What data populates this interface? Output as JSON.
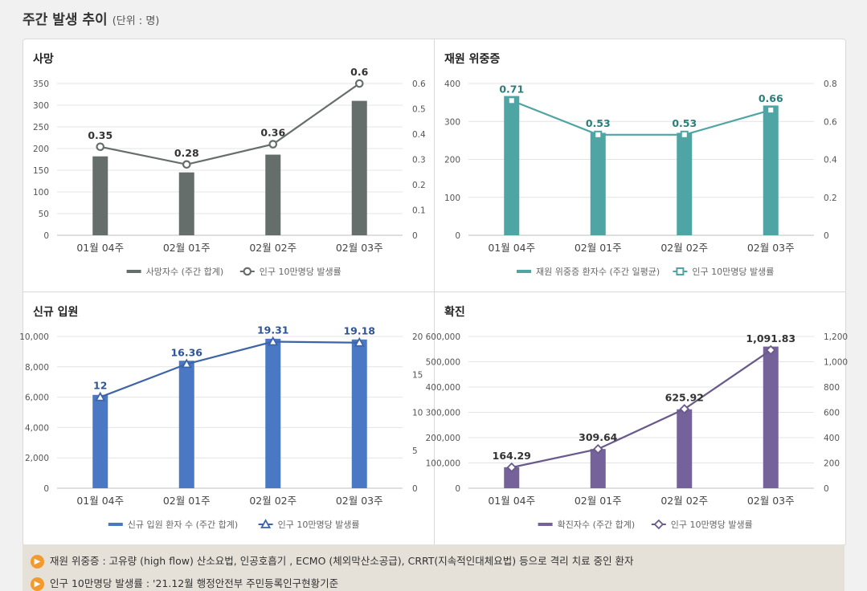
{
  "page": {
    "title": "주간 발생 추이",
    "unit": "(단위 : 명)"
  },
  "chart_data": [
    {
      "type": "bar",
      "title": "사망",
      "categories": [
        "01월 04주",
        "02월 01주",
        "02월 02주",
        "02월 03주"
      ],
      "colors": {
        "bar": "#666e6c",
        "line": "#666e6c",
        "label": "#333333"
      },
      "marker": "circle",
      "y_left": {
        "min": 0,
        "max": 350,
        "ticks": [
          "0",
          "50",
          "100",
          "150",
          "200",
          "250",
          "300",
          "350"
        ]
      },
      "y_right": {
        "min": 0,
        "max": 0.6,
        "ticks": [
          "0",
          "0.1",
          "0.2",
          "0.3",
          "0.4",
          "0.5",
          "0.6"
        ]
      },
      "series": [
        {
          "name": "사망자수 (주간 합계)",
          "kind": "bar",
          "axis": "left",
          "values": [
            182,
            145,
            186,
            310
          ]
        },
        {
          "name": "인구 10만명당 발생률",
          "kind": "line",
          "axis": "right",
          "values": [
            0.35,
            0.28,
            0.36,
            0.6
          ],
          "labels": [
            "0.35",
            "0.28",
            "0.36",
            "0.6"
          ]
        }
      ]
    },
    {
      "type": "bar",
      "title": "재원 위중증",
      "categories": [
        "01월 04주",
        "02월 01주",
        "02월 02주",
        "02월 03주"
      ],
      "colors": {
        "bar": "#4ea5a4",
        "line": "#4ea5a4",
        "label": "#2a7f7d"
      },
      "marker": "square",
      "y_left": {
        "min": 0,
        "max": 400,
        "ticks": [
          "0",
          "100",
          "200",
          "300",
          "400"
        ]
      },
      "y_right": {
        "min": 0,
        "max": 0.8,
        "ticks": [
          "0",
          "0.2",
          "0.4",
          "0.6",
          "0.8"
        ]
      },
      "series": [
        {
          "name": "재원 위중증 환자수 (주간 일평균)",
          "kind": "bar",
          "axis": "left",
          "values": [
            367,
            270,
            270,
            342
          ]
        },
        {
          "name": "인구 10만명당 발생률",
          "kind": "line",
          "axis": "right",
          "values": [
            0.71,
            0.53,
            0.53,
            0.66
          ],
          "labels": [
            "0.71",
            "0.53",
            "0.53",
            "0.66"
          ]
        }
      ]
    },
    {
      "type": "bar",
      "title": "신규 입원",
      "categories": [
        "01월 04주",
        "02월 01주",
        "02월 02주",
        "02월 03주"
      ],
      "colors": {
        "bar": "#4a78c4",
        "line": "#3d64a8",
        "label": "#2f5595"
      },
      "marker": "triangle",
      "y_left": {
        "min": 0,
        "max": 10000,
        "ticks": [
          "0",
          "2,000",
          "4,000",
          "6,000",
          "8,000",
          "10,000"
        ]
      },
      "y_right": {
        "min": 0,
        "max": 20,
        "ticks": [
          "0",
          "5",
          "10",
          "15",
          "20"
        ]
      },
      "series": [
        {
          "name": "신규 입원 환자 수 (주간 합계)",
          "kind": "bar",
          "axis": "left",
          "values": [
            6150,
            8400,
            9850,
            9800
          ]
        },
        {
          "name": "인구 10만명당 발생률",
          "kind": "line",
          "axis": "right",
          "values": [
            12,
            16.36,
            19.31,
            19.18
          ],
          "labels": [
            "12",
            "16.36",
            "19.31",
            "19.18"
          ]
        }
      ]
    },
    {
      "type": "bar",
      "title": "확진",
      "categories": [
        "01월 04주",
        "02월 01주",
        "02월 02주",
        "02월 03주"
      ],
      "colors": {
        "bar": "#76629a",
        "line": "#6a5a8c",
        "label": "#333333"
      },
      "marker": "diamond",
      "y_left": {
        "min": 0,
        "max": 600000,
        "ticks": [
          "0",
          "100,000",
          "200,000",
          "300,000",
          "400,000",
          "500,000",
          "600,000"
        ]
      },
      "y_right": {
        "min": 0,
        "max": 1200,
        "ticks": [
          "0",
          "200",
          "400",
          "600",
          "800",
          "1,000",
          "1,200"
        ]
      },
      "series": [
        {
          "name": "확진자수 (주간 합계)",
          "kind": "bar",
          "axis": "left",
          "values": [
            83000,
            155000,
            312000,
            560000
          ]
        },
        {
          "name": "인구 10만명당 발생률",
          "kind": "line",
          "axis": "right",
          "values": [
            164.29,
            309.64,
            625.92,
            1091.83
          ],
          "labels": [
            "164.29",
            "309.64",
            "625.92",
            "1,091.83"
          ]
        }
      ]
    }
  ],
  "notes": [
    {
      "icon": "speaker-icon",
      "text": "재원 위중증 : 고유량 (high flow) 산소요법, 인공호흡기 , ECMO (체외막산소공급), CRRT(지속적인대체요법) 등으로 격리 치료 중인 환자"
    },
    {
      "icon": "speaker-icon",
      "text": "인구 10만명당 발생률 : '21.12월 행정안전부 주민등록인구현황기준"
    }
  ]
}
